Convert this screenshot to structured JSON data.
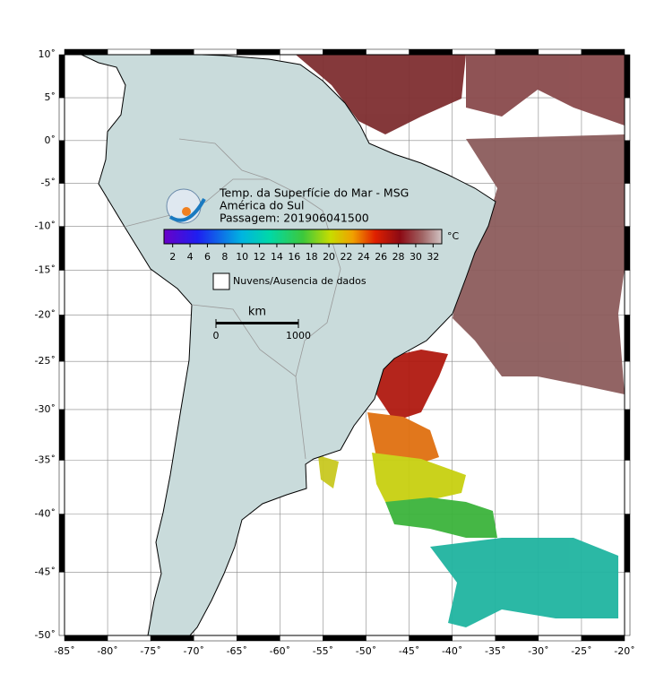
{
  "map": {
    "title_lines": [
      "Temp. da Superfície do Mar - MSG",
      "América do Sul",
      "Passagem: 201906041500"
    ],
    "lon_ticks": [
      {
        "value": -85,
        "label": "-85˚"
      },
      {
        "value": -80,
        "label": "-80˚"
      },
      {
        "value": -75,
        "label": "-75˚"
      },
      {
        "value": -70,
        "label": "-70˚"
      },
      {
        "value": -65,
        "label": "-65˚"
      },
      {
        "value": -60,
        "label": "-60˚"
      },
      {
        "value": -55,
        "label": "-55˚"
      },
      {
        "value": -50,
        "label": "-50˚"
      },
      {
        "value": -45,
        "label": "-45˚"
      },
      {
        "value": -40,
        "label": "-40˚"
      },
      {
        "value": -35,
        "label": "-35˚"
      },
      {
        "value": -30,
        "label": "-30˚"
      },
      {
        "value": -25,
        "label": "-25˚"
      },
      {
        "value": -20,
        "label": "-20˚"
      }
    ],
    "lat_ticks": [
      {
        "value": 10,
        "label": "10˚"
      },
      {
        "value": 5,
        "label": "5˚"
      },
      {
        "value": 0,
        "label": "0˚"
      },
      {
        "value": -5,
        "label": "-5˚"
      },
      {
        "value": -10,
        "label": "-10˚"
      },
      {
        "value": -15,
        "label": "-15˚"
      },
      {
        "value": -20,
        "label": "-20˚"
      },
      {
        "value": -25,
        "label": "-25˚"
      },
      {
        "value": -30,
        "label": "-30˚"
      },
      {
        "value": -35,
        "label": "-35˚"
      },
      {
        "value": -40,
        "label": "-40˚"
      },
      {
        "value": -45,
        "label": "-45˚"
      },
      {
        "value": -50,
        "label": "-50˚"
      }
    ],
    "colorbar": {
      "unit": "°C",
      "lim": [
        1,
        33
      ],
      "ticks": [
        2,
        4,
        6,
        8,
        10,
        12,
        14,
        16,
        18,
        20,
        22,
        24,
        26,
        28,
        30,
        32
      ]
    },
    "legend": "Nuvens/Ausencia de dados",
    "scale_bar": {
      "unit": "km",
      "ticks": [
        0,
        1000
      ]
    }
  }
}
